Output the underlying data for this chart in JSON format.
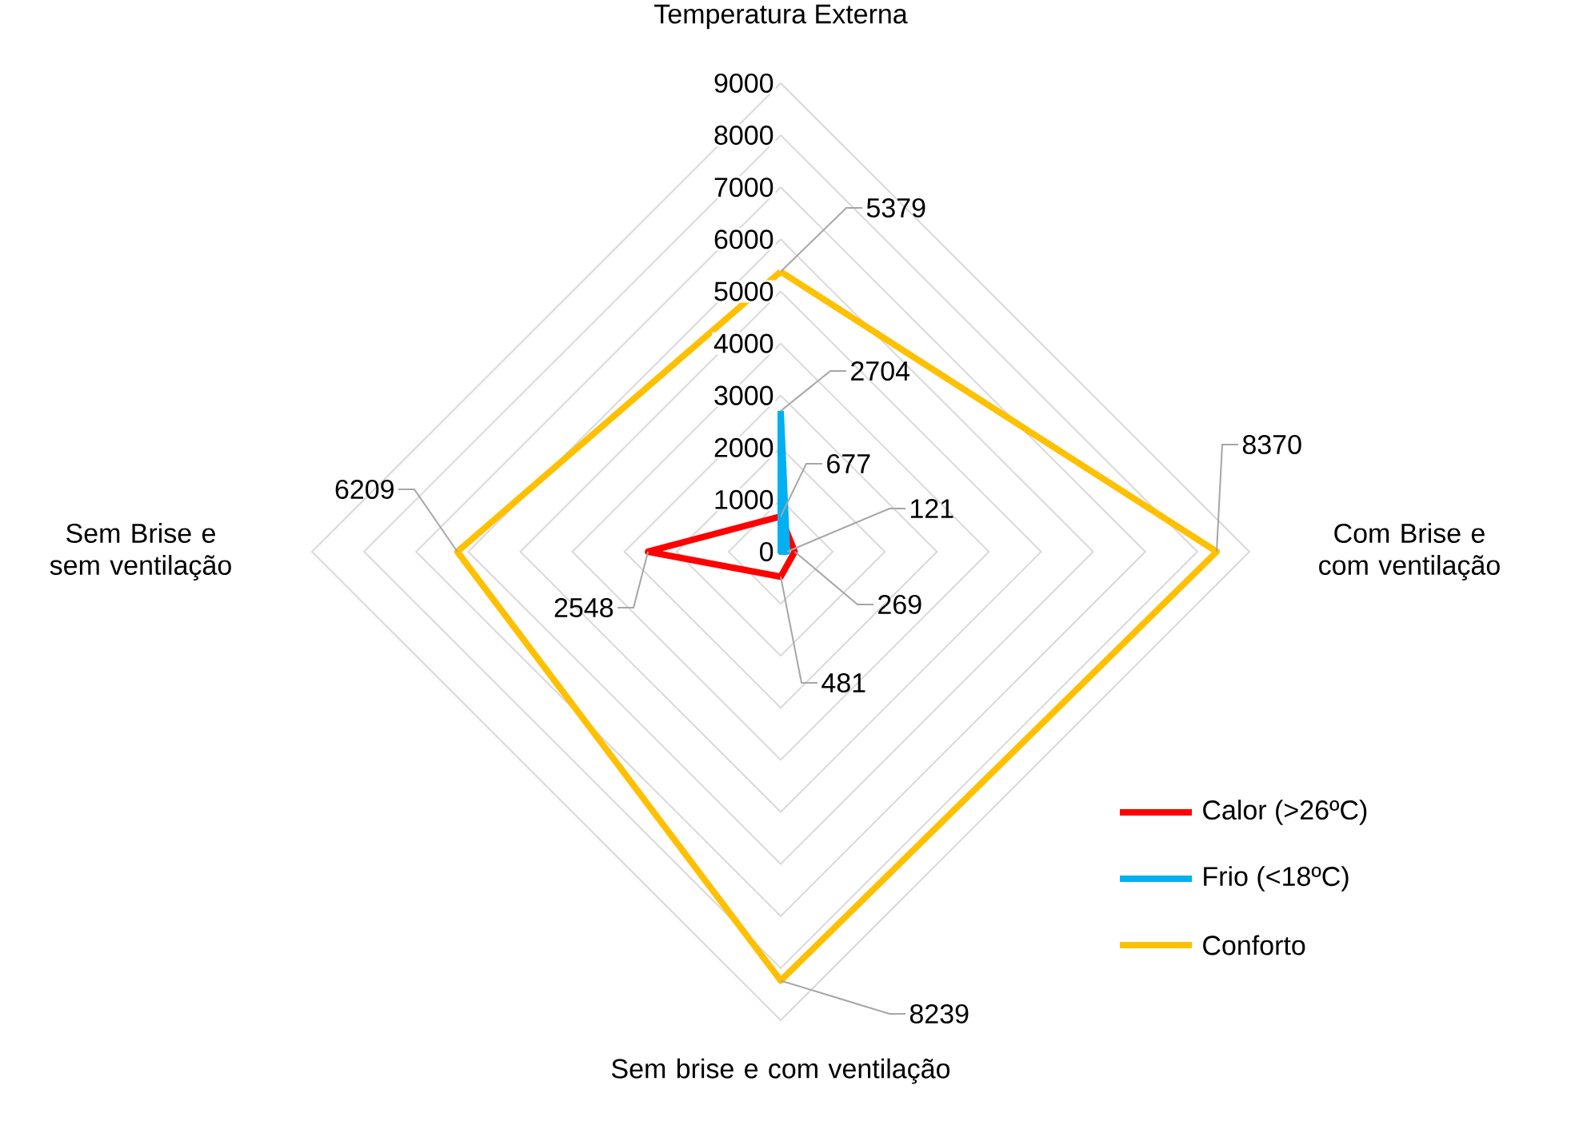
{
  "chart_data": {
    "type": "radar",
    "categories": [
      "Temperatura Externa",
      "Com Brise e com ventilação",
      "Sem brise e com ventilação",
      "Sem Brise e sem ventilação"
    ],
    "series": [
      {
        "name": "Calor (>26ºC)",
        "color": "#ff0000",
        "values": [
          677,
          269,
          481,
          2548
        ],
        "value_labels": [
          "677",
          "269",
          "481",
          "2548"
        ]
      },
      {
        "name": "Frio (<18ºC)",
        "color": "#00b0f0",
        "values": [
          2704,
          121,
          0,
          0
        ],
        "value_labels": [
          "2704",
          "121",
          null,
          null
        ]
      },
      {
        "name": "Conforto",
        "color": "#ffc000",
        "values": [
          5379,
          8370,
          8239,
          6209
        ],
        "value_labels": [
          "5379",
          "8370",
          "8239",
          "6209"
        ]
      }
    ],
    "ylim": [
      0,
      9000
    ],
    "yticks": [
      0,
      1000,
      2000,
      3000,
      4000,
      5000,
      6000,
      7000,
      8000,
      9000
    ],
    "grid": true,
    "legend": "bottom right"
  }
}
